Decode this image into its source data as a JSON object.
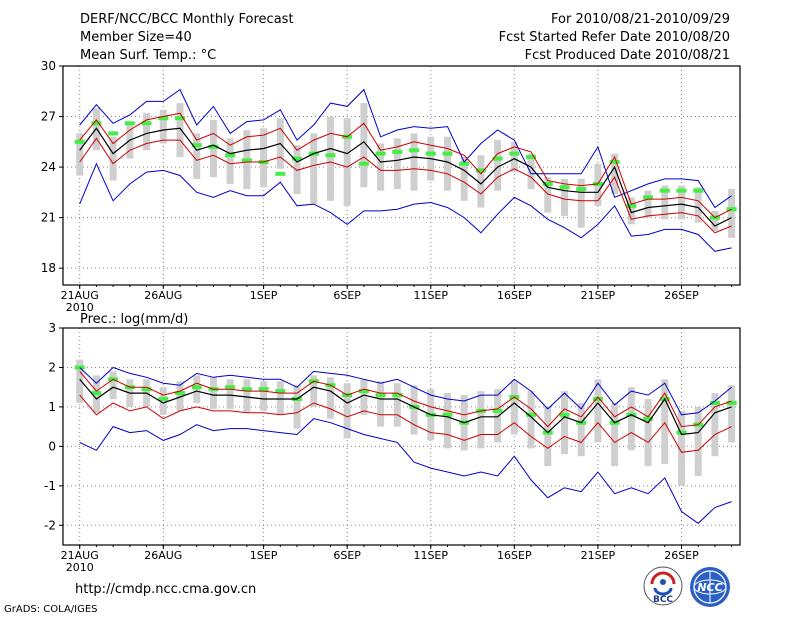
{
  "header": {
    "title": "DERF/NCC/BCC Monthly Forecast",
    "member_size": "Member Size=40",
    "variable": "Mean Surf. Temp.: °C",
    "period": "For 2010/08/21-2010/09/29",
    "started": "Fcst Started Refer Date 2010/08/20",
    "produced": "Fcst Produced Date 2010/08/21"
  },
  "footer": {
    "url": "http://cmdp.ncc.cma.gov.cn",
    "credit": "GrADS: COLA/IGES",
    "logo_bcc": "BCC",
    "logo_ncc": "NCC"
  },
  "colors": {
    "mean": "#000000",
    "ensemble_range": "#0000cc",
    "std_band": "#cc0000",
    "box": "#cfcfcf",
    "median_marker": "#44ee44",
    "grid": "#888888"
  },
  "chart_data": [
    {
      "type": "line",
      "title": "Mean Surf. Temp.: °C",
      "ylim": [
        17,
        30
      ],
      "yticks": [
        18,
        21,
        24,
        27,
        30
      ],
      "xlim_days": [
        -1,
        39.5
      ],
      "xticks": [
        {
          "day": 0,
          "label": "21AUG",
          "sub": "2010"
        },
        {
          "day": 5,
          "label": "26AUG",
          "sub": ""
        },
        {
          "day": 11,
          "label": "1SEP",
          "sub": ""
        },
        {
          "day": 16,
          "label": "6SEP",
          "sub": ""
        },
        {
          "day": 21,
          "label": "11SEP",
          "sub": ""
        },
        {
          "day": 26,
          "label": "16SEP",
          "sub": ""
        },
        {
          "day": 31,
          "label": "21SEP",
          "sub": ""
        },
        {
          "day": 36,
          "label": "26SEP",
          "sub": ""
        }
      ],
      "mean": [
        25.0,
        26.3,
        24.8,
        25.6,
        26.0,
        26.2,
        26.3,
        25.0,
        25.3,
        24.8,
        25.0,
        25.1,
        25.4,
        24.3,
        24.8,
        25.1,
        24.8,
        25.5,
        24.3,
        24.4,
        24.6,
        24.5,
        24.3,
        23.8,
        23.0,
        24.0,
        24.5,
        24.0,
        22.8,
        22.6,
        22.5,
        22.5,
        24.0,
        21.3,
        21.6,
        21.7,
        21.8,
        21.6,
        20.5,
        21.0
      ],
      "upper_band": [
        25.6,
        26.8,
        25.4,
        26.2,
        26.8,
        27.0,
        27.2,
        25.6,
        26.0,
        25.3,
        25.8,
        25.9,
        26.3,
        25.0,
        25.6,
        26.0,
        25.8,
        26.6,
        25.0,
        25.2,
        25.5,
        25.3,
        25.1,
        24.7,
        23.6,
        24.8,
        25.2,
        24.9,
        23.2,
        23.0,
        22.9,
        23.0,
        24.6,
        21.8,
        22.1,
        22.1,
        22.2,
        22.0,
        21.0,
        21.5
      ],
      "lower_band": [
        24.3,
        25.7,
        24.2,
        25.0,
        25.4,
        25.6,
        25.6,
        24.4,
        24.7,
        24.2,
        24.3,
        24.3,
        24.6,
        23.8,
        24.1,
        24.3,
        24.0,
        24.6,
        23.8,
        23.8,
        23.9,
        23.8,
        23.6,
        23.1,
        22.4,
        23.4,
        23.9,
        23.4,
        22.4,
        22.1,
        22.0,
        22.0,
        23.4,
        20.9,
        21.1,
        21.2,
        21.3,
        21.1,
        20.1,
        20.5
      ],
      "ensemble_max": [
        26.5,
        27.7,
        26.6,
        27.1,
        27.9,
        27.9,
        28.6,
        26.5,
        27.6,
        26.0,
        26.7,
        26.8,
        27.4,
        25.6,
        26.5,
        27.8,
        27.6,
        28.6,
        25.8,
        26.2,
        26.4,
        26.3,
        26.4,
        24.3,
        25.4,
        26.2,
        25.6,
        23.6,
        23.6,
        23.6,
        23.6,
        25.2,
        22.2,
        22.6,
        23.0,
        23.3,
        23.3,
        23.2,
        21.6,
        22.3
      ],
      "ensemble_min": [
        21.8,
        24.2,
        22.0,
        23.0,
        23.7,
        23.8,
        23.5,
        22.5,
        22.2,
        22.6,
        22.3,
        22.3,
        23.1,
        21.7,
        21.8,
        21.3,
        20.6,
        21.4,
        21.4,
        21.5,
        21.8,
        21.9,
        21.6,
        21.0,
        20.1,
        21.2,
        22.2,
        21.7,
        20.9,
        20.4,
        19.8,
        20.6,
        21.7,
        19.9,
        20.0,
        20.3,
        20.3,
        20.0,
        19.0,
        19.2
      ],
      "box_top": [
        26.0,
        27.5,
        25.8,
        26.6,
        27.2,
        27.4,
        27.8,
        26.0,
        26.8,
        25.7,
        26.2,
        26.3,
        26.9,
        25.3,
        26.0,
        27.0,
        26.9,
        27.8,
        25.4,
        25.7,
        26.0,
        25.8,
        25.8,
        24.6,
        24.7,
        25.6,
        25.5,
        24.8,
        23.4,
        23.3,
        23.3,
        24.2,
        24.8,
        22.2,
        22.6,
        22.9,
        22.9,
        22.8,
        21.4,
        22.7
      ],
      "box_bottom": [
        23.5,
        25.0,
        23.2,
        24.5,
        25.0,
        25.4,
        24.6,
        23.3,
        23.4,
        23.0,
        22.7,
        22.8,
        23.9,
        22.4,
        21.8,
        22.0,
        21.7,
        22.8,
        22.6,
        22.7,
        22.6,
        23.2,
        22.6,
        22.0,
        21.6,
        22.6,
        23.7,
        22.7,
        21.3,
        21.1,
        20.4,
        21.7,
        22.4,
        20.6,
        21.0,
        20.9,
        20.9,
        20.7,
        20.2,
        19.8
      ],
      "median": [
        25.5,
        26.6,
        26.0,
        26.6,
        26.6,
        26.9,
        26.9,
        25.3,
        25.2,
        24.7,
        24.4,
        24.3,
        23.6,
        24.5,
        24.8,
        24.7,
        25.8,
        24.2,
        24.8,
        24.9,
        25.0,
        24.8,
        24.8,
        24.2,
        23.8,
        24.5,
        24.8,
        24.6,
        23.0,
        22.8,
        22.7,
        23.0,
        24.3,
        21.7,
        22.2,
        22.6,
        22.6,
        22.6,
        21.0,
        21.5
      ]
    },
    {
      "type": "line",
      "title": "Prec.: log(mm/d)",
      "ylim": [
        -2.5,
        3
      ],
      "yticks": [
        -2,
        -1,
        0,
        1,
        2,
        3
      ],
      "xlim_days": [
        -1,
        39.5
      ],
      "xticks": [
        {
          "day": 0,
          "label": "21AUG",
          "sub": "2010"
        },
        {
          "day": 5,
          "label": "26AUG",
          "sub": ""
        },
        {
          "day": 11,
          "label": "1SEP",
          "sub": ""
        },
        {
          "day": 16,
          "label": "6SEP",
          "sub": ""
        },
        {
          "day": 21,
          "label": "11SEP",
          "sub": ""
        },
        {
          "day": 26,
          "label": "16SEP",
          "sub": ""
        },
        {
          "day": 31,
          "label": "21SEP",
          "sub": ""
        },
        {
          "day": 36,
          "label": "26SEP",
          "sub": ""
        }
      ],
      "mean": [
        1.7,
        1.2,
        1.5,
        1.35,
        1.35,
        1.1,
        1.25,
        1.4,
        1.3,
        1.3,
        1.25,
        1.2,
        1.2,
        1.2,
        1.5,
        1.4,
        1.1,
        1.3,
        1.2,
        1.2,
        1.0,
        0.8,
        0.75,
        0.6,
        0.75,
        0.75,
        1.1,
        0.75,
        0.35,
        0.75,
        0.6,
        1.1,
        0.6,
        0.8,
        0.6,
        1.2,
        0.3,
        0.35,
        0.85,
        1.0
      ],
      "upper_band": [
        1.9,
        1.4,
        1.7,
        1.5,
        1.5,
        1.3,
        1.4,
        1.6,
        1.45,
        1.45,
        1.4,
        1.4,
        1.35,
        1.35,
        1.65,
        1.55,
        1.3,
        1.45,
        1.35,
        1.35,
        1.15,
        1.0,
        0.9,
        0.8,
        0.9,
        0.95,
        1.25,
        0.95,
        0.5,
        0.95,
        0.75,
        1.25,
        0.75,
        1.0,
        0.75,
        1.35,
        0.5,
        0.55,
        1.0,
        1.15
      ],
      "lower_band": [
        1.3,
        0.8,
        1.1,
        0.9,
        1.0,
        0.7,
        0.9,
        1.0,
        0.9,
        0.9,
        0.85,
        0.85,
        0.8,
        0.85,
        1.1,
        0.95,
        0.75,
        0.9,
        0.8,
        0.8,
        0.55,
        0.35,
        0.3,
        0.15,
        0.3,
        0.3,
        0.6,
        0.25,
        -0.05,
        0.25,
        0.1,
        0.6,
        0.1,
        0.35,
        0.1,
        0.6,
        -0.15,
        -0.1,
        0.3,
        0.5
      ],
      "ensemble_max": [
        2.0,
        1.6,
        2.0,
        1.85,
        1.75,
        1.6,
        1.55,
        1.85,
        1.75,
        1.8,
        1.75,
        1.7,
        1.7,
        1.5,
        1.9,
        1.85,
        1.8,
        1.7,
        1.6,
        1.7,
        1.5,
        1.3,
        1.2,
        1.15,
        1.3,
        1.3,
        1.7,
        1.4,
        0.95,
        1.35,
        0.95,
        1.6,
        1.05,
        1.4,
        1.3,
        1.6,
        0.8,
        0.85,
        1.15,
        1.5
      ],
      "ensemble_min": [
        0.1,
        -0.1,
        0.5,
        0.35,
        0.4,
        0.15,
        0.3,
        0.55,
        0.4,
        0.45,
        0.45,
        0.4,
        0.35,
        0.3,
        0.7,
        0.6,
        0.45,
        0.3,
        0.2,
        0.1,
        -0.4,
        -0.55,
        -0.65,
        -0.75,
        -0.65,
        -0.75,
        -0.25,
        -0.85,
        -1.3,
        -1.05,
        -1.15,
        -0.65,
        -1.2,
        -1.05,
        -1.2,
        -0.8,
        -1.65,
        -1.95,
        -1.55,
        -1.4
      ],
      "box_top": [
        2.2,
        1.8,
        1.9,
        1.7,
        1.7,
        1.5,
        1.65,
        1.8,
        1.75,
        1.7,
        1.7,
        1.65,
        1.65,
        1.55,
        1.8,
        1.75,
        1.6,
        1.7,
        1.65,
        1.6,
        1.55,
        1.45,
        1.35,
        1.3,
        1.4,
        1.45,
        1.65,
        1.4,
        1.0,
        1.4,
        1.1,
        1.7,
        1.1,
        1.5,
        1.2,
        1.7,
        0.9,
        1.0,
        1.35,
        1.55
      ],
      "box_bottom": [
        1.1,
        0.85,
        1.2,
        1.0,
        1.0,
        0.8,
        0.9,
        1.1,
        0.95,
        0.95,
        0.85,
        0.9,
        0.8,
        0.45,
        1.0,
        0.7,
        0.2,
        0.8,
        0.5,
        0.5,
        0.3,
        0.15,
        -0.05,
        -0.1,
        -0.05,
        0.1,
        0.3,
        -0.05,
        -0.5,
        -0.2,
        -0.25,
        0.1,
        -0.5,
        -0.1,
        -0.5,
        -0.45,
        -1.0,
        -0.75,
        -0.25,
        0.1
      ],
      "median": [
        2.0,
        1.35,
        1.7,
        1.5,
        1.45,
        1.2,
        1.35,
        1.5,
        1.45,
        1.5,
        1.45,
        1.45,
        1.4,
        1.2,
        1.65,
        1.55,
        1.3,
        1.4,
        1.3,
        1.3,
        1.0,
        0.8,
        0.8,
        0.6,
        0.9,
        0.9,
        1.25,
        0.8,
        0.35,
        0.8,
        0.6,
        1.2,
        0.6,
        0.8,
        0.7,
        1.2,
        0.35,
        0.55,
        1.1,
        1.1
      ]
    }
  ]
}
